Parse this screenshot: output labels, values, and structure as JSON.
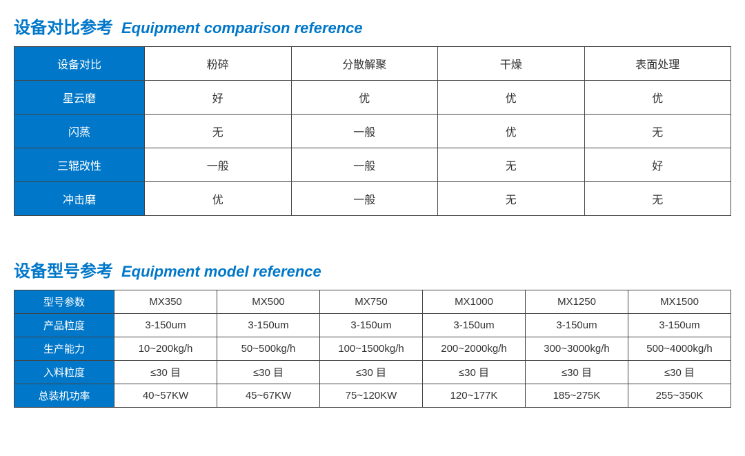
{
  "section1": {
    "title_cn": "设备对比参考",
    "title_en": "Equipment comparison reference",
    "table": {
      "type": "table",
      "header_bg": "#0077c8",
      "header_fg": "#ffffff",
      "border_color": "#444444",
      "cell_bg": "#ffffff",
      "col_headers_row_label": "设备对比",
      "col_headers": [
        "粉碎",
        "分散解聚",
        "干燥",
        "表面处理"
      ],
      "rows": [
        {
          "label": "星云磨",
          "cells": [
            "好",
            "优",
            "优",
            "优"
          ]
        },
        {
          "label": "闪蒸",
          "cells": [
            "无",
            "一般",
            "优",
            "无"
          ]
        },
        {
          "label": "三辊改性",
          "cells": [
            "一般",
            "一般",
            "无",
            "好"
          ]
        },
        {
          "label": "冲击磨",
          "cells": [
            "优",
            "一般",
            "无",
            "无"
          ]
        }
      ]
    }
  },
  "section2": {
    "title_cn": "设备型号参考",
    "title_en": "Equipment model reference",
    "table": {
      "type": "table",
      "header_bg": "#0077c8",
      "header_fg": "#ffffff",
      "border_color": "#444444",
      "cell_bg": "#ffffff",
      "col_headers_row_label": "型号参数",
      "col_headers": [
        "MX350",
        "MX500",
        "MX750",
        "MX1000",
        "MX1250",
        "MX1500"
      ],
      "rows": [
        {
          "label": "产品粒度",
          "cells": [
            "3-150um",
            "3-150um",
            "3-150um",
            "3-150um",
            "3-150um",
            "3-150um"
          ]
        },
        {
          "label": "生产能力",
          "cells": [
            "10~200kg/h",
            "50~500kg/h",
            "100~1500kg/h",
            "200~2000kg/h",
            "300~3000kg/h",
            "500~4000kg/h"
          ]
        },
        {
          "label": "入料粒度",
          "cells": [
            "≤30 目",
            "≤30 目",
            "≤30 目",
            "≤30 目",
            "≤30 目",
            "≤30 目"
          ]
        },
        {
          "label": "总装机功率",
          "cells": [
            "40~57KW",
            "45~67KW",
            "75~120KW",
            "120~177K",
            "185~275K",
            "255~350K"
          ]
        }
      ]
    }
  }
}
